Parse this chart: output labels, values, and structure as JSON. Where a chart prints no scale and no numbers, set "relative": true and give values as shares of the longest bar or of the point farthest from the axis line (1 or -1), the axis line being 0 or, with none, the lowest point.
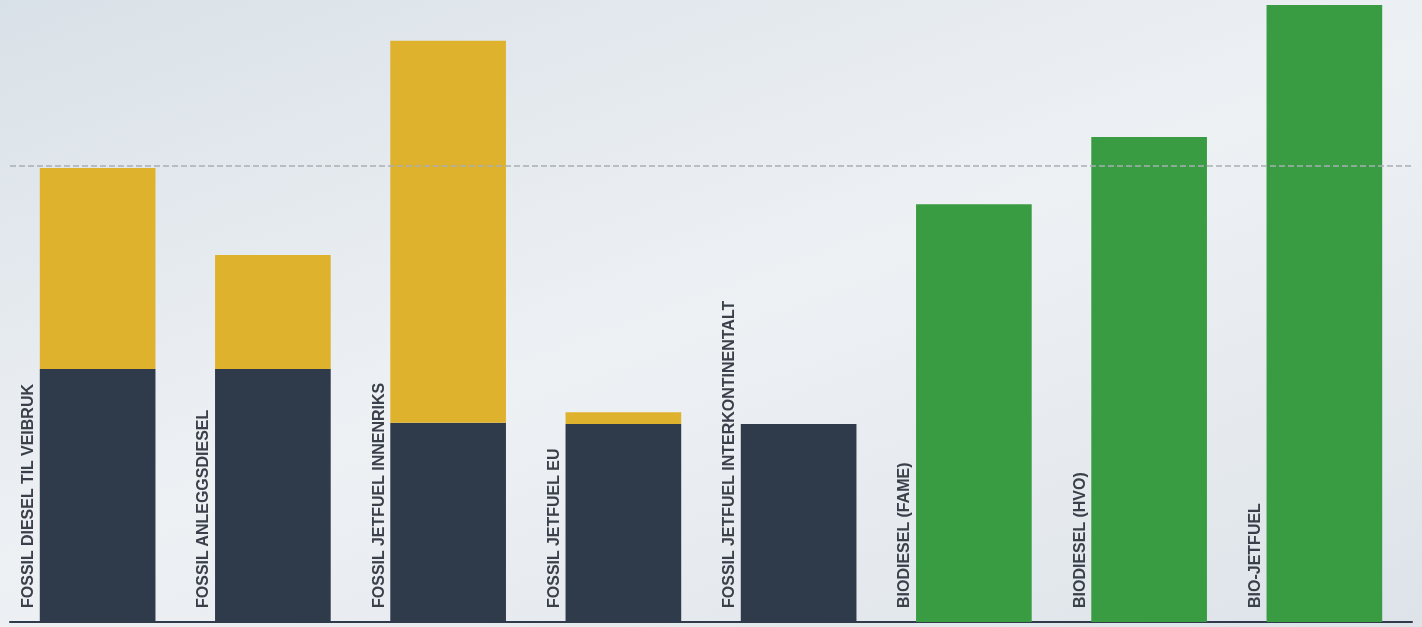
{
  "chart_data": {
    "type": "bar",
    "relative": true,
    "stacked": true,
    "categories": [
      "FOSSIL DIESEL TIL VEIBRUK",
      "FOSSIL ANLEGGSDIESEL",
      "FOSSIL JETFUEL INNENRIKS",
      "FOSSIL JETFUEL EU",
      "FOSSIL JETFUEL INTERKONTINENTALT",
      "BIODIESEL (FAME)",
      "BIODIESEL (HVO)",
      "BIO-JETFUEL"
    ],
    "series": [
      {
        "color": "#2f3a4b",
        "values": [
          0.41,
          0.41,
          0.323,
          0.321,
          0.321,
          null,
          null,
          null
        ]
      },
      {
        "color": "#dfb22e",
        "values": [
          0.326,
          0.185,
          0.619,
          0.019,
          null,
          null,
          null,
          null
        ]
      },
      {
        "color": "#3a9c42",
        "values": [
          null,
          null,
          null,
          null,
          null,
          0.677,
          0.786,
          1.0
        ]
      }
    ],
    "ref_lines": [
      {
        "axis": "y",
        "value": 0.736,
        "color": "#a9aeb3",
        "line_style": "dashed"
      }
    ]
  }
}
